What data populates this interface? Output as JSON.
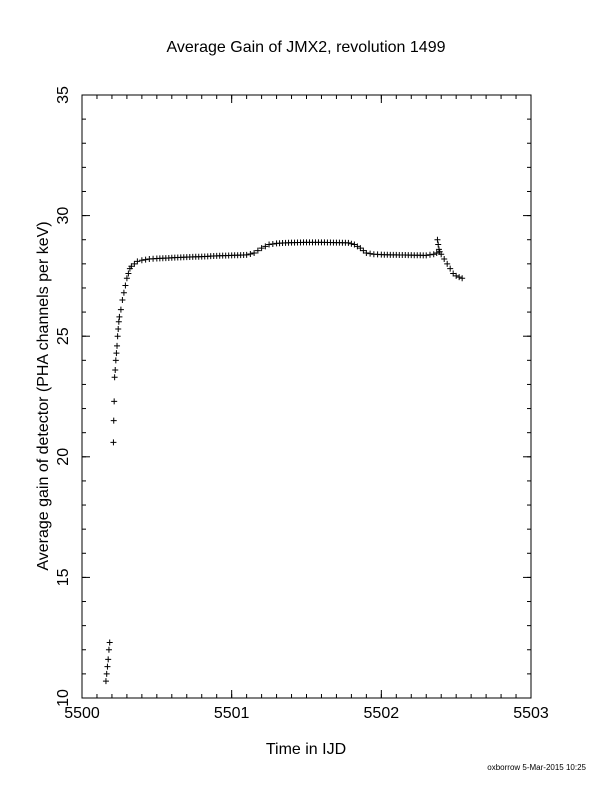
{
  "chart_data": {
    "type": "scatter",
    "title": "Average Gain of JMX2, revolution 1499",
    "xlabel": "Time in IJD",
    "ylabel": "Average gain of detector (PHA channels per keV)",
    "xlim": [
      5500,
      5503
    ],
    "ylim": [
      10,
      35
    ],
    "xticks": [
      "5500",
      "5501",
      "5502",
      "5503"
    ],
    "yticks": [
      "10",
      "15",
      "20",
      "25",
      "30",
      "35"
    ],
    "grid": false,
    "marker": "+",
    "series": [
      {
        "points": [
          [
            5500.16,
            10.7
          ],
          [
            5500.165,
            11.0
          ],
          [
            5500.17,
            11.3
          ],
          [
            5500.175,
            11.6
          ],
          [
            5500.18,
            12.0
          ],
          [
            5500.185,
            12.3
          ],
          [
            5500.21,
            20.6
          ],
          [
            5500.212,
            21.5
          ],
          [
            5500.215,
            22.3
          ],
          [
            5500.218,
            23.3
          ],
          [
            5500.222,
            23.6
          ],
          [
            5500.226,
            24.0
          ],
          [
            5500.23,
            24.3
          ],
          [
            5500.234,
            24.6
          ],
          [
            5500.238,
            25.0
          ],
          [
            5500.242,
            25.3
          ],
          [
            5500.246,
            25.6
          ],
          [
            5500.25,
            25.8
          ],
          [
            5500.26,
            26.1
          ],
          [
            5500.27,
            26.5
          ],
          [
            5500.28,
            26.8
          ],
          [
            5500.29,
            27.1
          ],
          [
            5500.3,
            27.4
          ],
          [
            5500.31,
            27.6
          ],
          [
            5500.32,
            27.8
          ],
          [
            5500.33,
            27.9
          ],
          [
            5500.35,
            28.0
          ],
          [
            5500.37,
            28.1
          ],
          [
            5500.4,
            28.15
          ],
          [
            5500.45,
            28.2
          ],
          [
            5500.5,
            28.22
          ],
          [
            5500.6,
            28.25
          ],
          [
            5500.7,
            28.28
          ],
          [
            5500.8,
            28.3
          ],
          [
            5500.9,
            28.33
          ],
          [
            5501.0,
            28.35
          ],
          [
            5501.1,
            28.37
          ],
          [
            5501.15,
            28.45
          ],
          [
            5501.2,
            28.65
          ],
          [
            5501.25,
            28.8
          ],
          [
            5501.3,
            28.85
          ],
          [
            5501.4,
            28.88
          ],
          [
            5501.5,
            28.89
          ],
          [
            5501.6,
            28.89
          ],
          [
            5501.7,
            28.88
          ],
          [
            5501.78,
            28.87
          ],
          [
            5501.82,
            28.8
          ],
          [
            5501.86,
            28.65
          ],
          [
            5501.9,
            28.45
          ],
          [
            5501.95,
            28.4
          ],
          [
            5502.0,
            28.38
          ],
          [
            5502.1,
            28.37
          ],
          [
            5502.2,
            28.36
          ],
          [
            5502.3,
            28.35
          ],
          [
            5502.35,
            28.4
          ],
          [
            5502.37,
            28.45
          ],
          [
            5502.375,
            29.0
          ],
          [
            5502.38,
            28.8
          ],
          [
            5502.385,
            28.6
          ],
          [
            5502.39,
            28.5
          ],
          [
            5502.4,
            28.4
          ],
          [
            5502.42,
            28.2
          ],
          [
            5502.44,
            28.0
          ],
          [
            5502.46,
            27.8
          ],
          [
            5502.48,
            27.6
          ],
          [
            5502.5,
            27.5
          ],
          [
            5502.52,
            27.45
          ],
          [
            5502.54,
            27.4
          ]
        ]
      }
    ],
    "credit": "oxborrow  5-Mar-2015 10:25"
  }
}
